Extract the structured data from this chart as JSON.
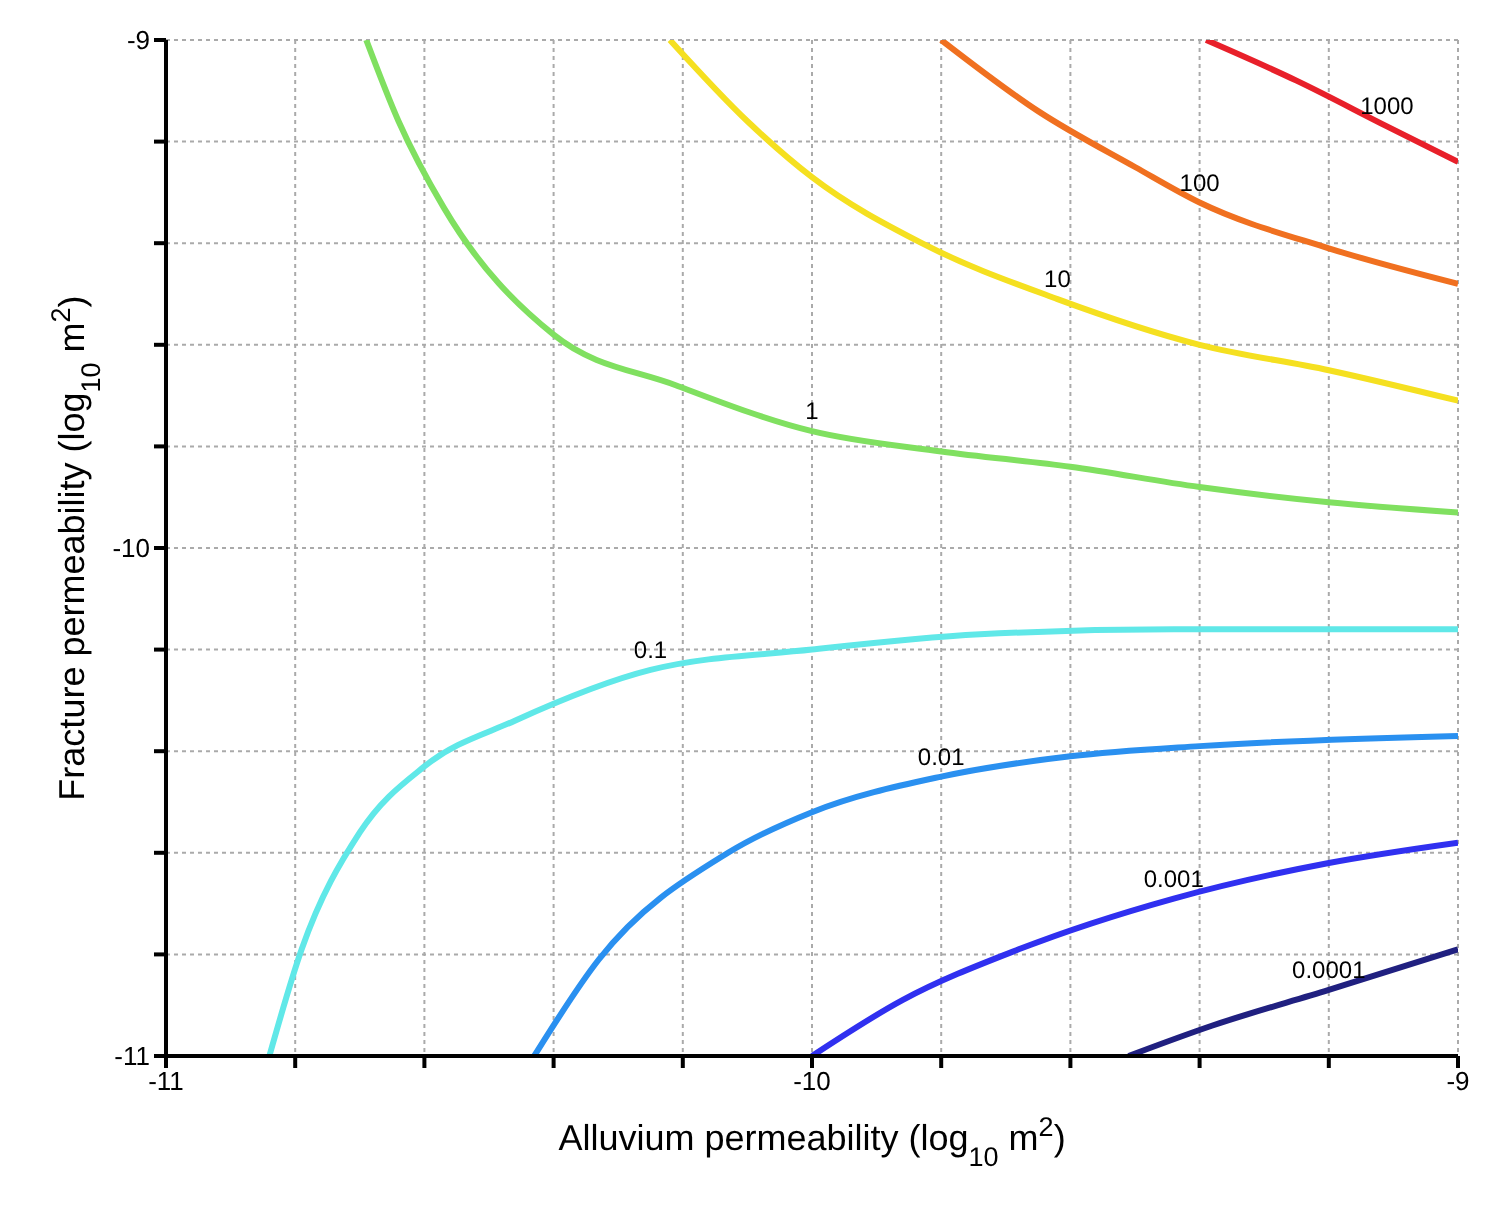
{
  "chart_data": {
    "type": "line",
    "xlabel": "Alluvium permeability (log$_{10}$ m$^{2}$)",
    "ylabel": "Fracture permeability (log$_{10}$ m$^{2}$)",
    "xlim": [
      -11,
      -9
    ],
    "ylim": [
      -11,
      -9
    ],
    "xticks": [
      -11,
      {
        "value": -10.8,
        "label": null
      },
      {
        "value": -10.6,
        "label": null
      },
      {
        "value": -10.4,
        "label": null
      },
      {
        "value": -10.2,
        "label": null
      },
      -10,
      {
        "value": -9.8,
        "label": null
      },
      {
        "value": -9.6,
        "label": null
      },
      {
        "value": -9.4,
        "label": null
      },
      {
        "value": -9.2,
        "label": null
      },
      -9
    ],
    "yticks": [
      -11,
      {
        "value": -10.8,
        "label": null
      },
      {
        "value": -10.6,
        "label": null
      },
      {
        "value": -10.4,
        "label": null
      },
      {
        "value": -10.2,
        "label": null
      },
      -10,
      {
        "value": -9.8,
        "label": null
      },
      {
        "value": -9.6,
        "label": null
      },
      {
        "value": -9.4,
        "label": null
      },
      {
        "value": -9.2,
        "label": null
      },
      -9
    ],
    "grid": true,
    "legend": false,
    "marker": "none",
    "line_style": "solid",
    "series": [
      {
        "name": "1000",
        "color": "#e8202a",
        "x": [
          -9.39,
          -9.25,
          -9.11,
          -9.0
        ],
        "values": [
          -9.0,
          -9.08,
          -9.17,
          -9.24
        ]
      },
      {
        "name": "100",
        "color": "#f07020",
        "x": [
          -9.8,
          -9.65,
          -9.5,
          -9.4,
          -9.2,
          -9.0
        ],
        "values": [
          -9.0,
          -9.14,
          -9.25,
          -9.32,
          -9.41,
          -9.48
        ]
      },
      {
        "name": "10",
        "color": "#f5e020",
        "x": [
          -10.22,
          -10.1,
          -10.0,
          -9.83,
          -9.62,
          -9.4,
          -9.2,
          -9.0
        ],
        "values": [
          -9.0,
          -9.16,
          -9.27,
          -9.4,
          -9.51,
          -9.6,
          -9.65,
          -9.71
        ]
      },
      {
        "name": "1",
        "color": "#80e060",
        "x": [
          -10.69,
          -10.64,
          -10.57,
          -10.4,
          -10.21,
          -10.0,
          -9.8,
          -9.6,
          -9.4,
          -9.2,
          -9.0
        ],
        "values": [
          -9.0,
          -9.16,
          -9.33,
          -9.58,
          -9.68,
          -9.77,
          -9.81,
          -9.84,
          -9.88,
          -9.91,
          -9.93
        ]
      },
      {
        "name": "0.1",
        "color": "#60e8e8",
        "x": [
          -10.84,
          -10.79,
          -10.7,
          -10.6,
          -10.46,
          -10.25,
          -10.0,
          -9.74,
          -9.44,
          -9.0
        ],
        "values": [
          -11.0,
          -10.79,
          -10.56,
          -10.43,
          -10.34,
          -10.24,
          -10.2,
          -10.17,
          -10.16,
          -10.16
        ]
      },
      {
        "name": "0.01",
        "color": "#2a90f0",
        "x": [
          -10.43,
          -10.33,
          -10.13,
          -10.0,
          -9.8,
          -9.6,
          -9.4,
          -9.0
        ],
        "values": [
          -11.0,
          -10.81,
          -10.6,
          -10.52,
          -10.45,
          -10.41,
          -10.39,
          -10.37
        ]
      },
      {
        "name": "0.001",
        "color": "#3030f0",
        "x": [
          -10.0,
          -9.86,
          -9.68,
          -9.44,
          -9.2,
          -9.0
        ],
        "values": [
          -11.0,
          -10.89,
          -10.79,
          -10.69,
          -10.62,
          -10.58
        ]
      },
      {
        "name": "0.0001",
        "color": "#202080",
        "x": [
          -9.51,
          -9.38,
          -9.2,
          -9.0
        ],
        "values": [
          -11.0,
          -10.94,
          -10.87,
          -10.79
        ]
      }
    ]
  }
}
